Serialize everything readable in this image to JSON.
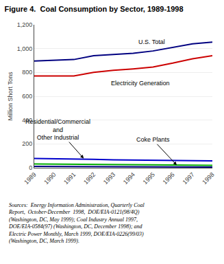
{
  "chart_data": {
    "type": "line",
    "title": "Figure 4.  Coal Consumption by Sector, 1989-1998",
    "x": [
      1989,
      1990,
      1991,
      1992,
      1993,
      1994,
      1995,
      1996,
      1997,
      1998
    ],
    "series": [
      {
        "name": "U.S. Total",
        "color": "#000080",
        "values": [
          895,
          900,
          908,
          940,
          948,
          960,
          980,
          1010,
          1040,
          1055
        ]
      },
      {
        "name": "Electricity Generation",
        "color": "#cc0000",
        "values": [
          770,
          772,
          770,
          800,
          818,
          830,
          845,
          878,
          915,
          940
        ]
      },
      {
        "name": "Other Industrial",
        "color": "#0000cc",
        "values": [
          78,
          74,
          72,
          70,
          67,
          65,
          63,
          62,
          60,
          58
        ]
      },
      {
        "name": "Coke Plants",
        "color": "#00aa00",
        "values": [
          32,
          30,
          28,
          27,
          26,
          25,
          24,
          23,
          22,
          20
        ]
      },
      {
        "name": "Residential/Commercial",
        "color": "#000080",
        "values": [
          12,
          11,
          10,
          9,
          8,
          8,
          7,
          7,
          7,
          6
        ]
      }
    ],
    "ylabel": "Million Short Tons",
    "xlim": [
      1989,
      1998
    ],
    "xticks": [
      1989,
      1990,
      1991,
      1992,
      1993,
      1994,
      1995,
      1996,
      1997,
      1998
    ],
    "ylim": [
      0,
      1200
    ],
    "yticks": [
      0,
      200,
      400,
      600,
      800,
      {
        "value": 1000,
        "label": "1,000"
      },
      {
        "value": 1200,
        "label": "1,200"
      }
    ],
    "grid": true,
    "annotations": [
      {
        "text": "U.S. Total",
        "x": 1994.2,
        "y": 1015
      },
      {
        "text": "Electricity Generation",
        "x": 1992.8,
        "y": 752
      },
      {
        "text": "Residential/Commercial\nand\nOther Industrial",
        "x": 1990.2,
        "y": 320,
        "arrow_x": 1991.5,
        "arrow_y": 78
      },
      {
        "text": "Coke Plants",
        "x": 1995.0,
        "y": 235,
        "arrow_x": 1996.2,
        "arrow_y": 22
      }
    ],
    "source": "Sources:  Energy Information Administration, Quarterly Coal\nReport,  October-December  1998,  DOE/EIA-0121(98/4Q)\n(Washington, DC, May 1999); Coal Industry Annual 1997,\nDOE/EIA-0584(97) (Washington, DC, December 1998); and\nElectric Power Monthly, March 1999, DOE/EIA-0226(99/03)\n(Washington, DC, March 1999)."
  }
}
